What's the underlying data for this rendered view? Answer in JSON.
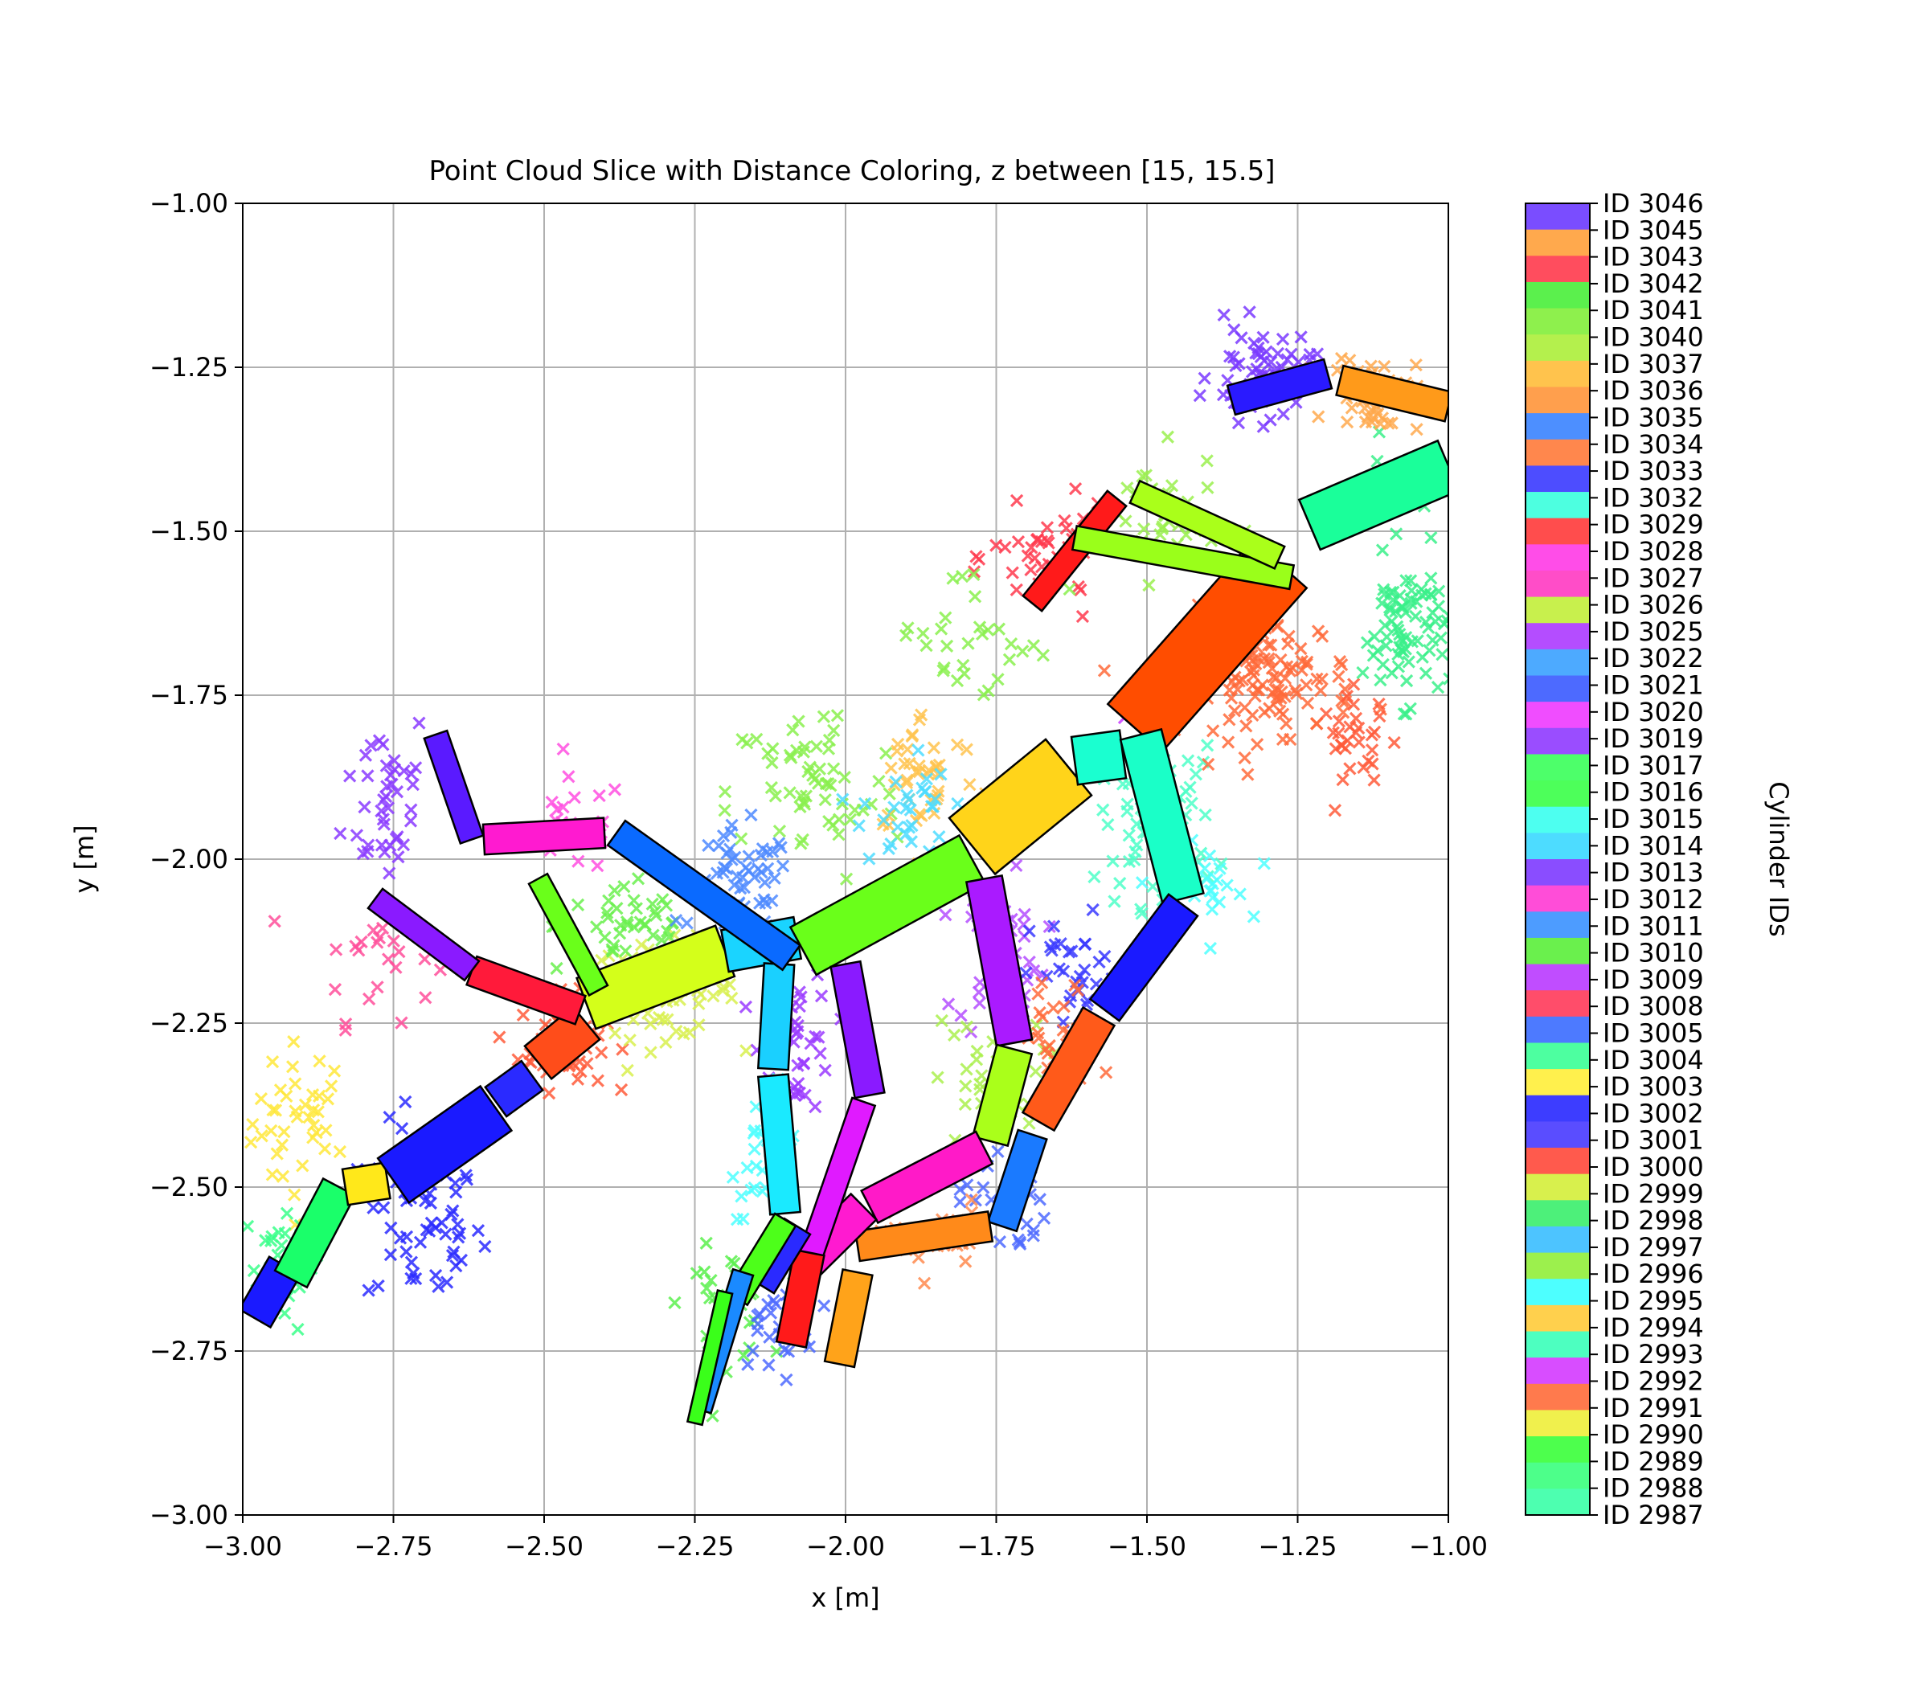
{
  "chart_data": {
    "type": "scatter",
    "title": "Point Cloud Slice with Distance Coloring, z between [15, 15.5]",
    "xlabel": "x [m]",
    "ylabel": "y [m]",
    "xlim": [
      -3.0,
      -1.0
    ],
    "ylim": [
      -3.0,
      -1.0
    ],
    "xticks": [
      "−3.00",
      "−2.75",
      "−2.50",
      "−2.25",
      "−2.00",
      "−1.75",
      "−1.50",
      "−1.25",
      "−1.00"
    ],
    "yticks": [
      "−3.00",
      "−2.75",
      "−2.50",
      "−2.25",
      "−2.00",
      "−1.75",
      "−1.50",
      "−1.25",
      "−1.00"
    ],
    "grid": true,
    "marker": "x",
    "colorbar": {
      "label": "Cylinder IDs",
      "entries": [
        {
          "label": "ID 3046",
          "color": "#7a4dff"
        },
        {
          "label": "ID 3045",
          "color": "#ffa94d"
        },
        {
          "label": "ID 3043",
          "color": "#ff4d5e"
        },
        {
          "label": "ID 3042",
          "color": "#5bf04d"
        },
        {
          "label": "ID 3041",
          "color": "#8ef04d"
        },
        {
          "label": "ID 3040",
          "color": "#b4f04d"
        },
        {
          "label": "ID 3037",
          "color": "#ffc34d"
        },
        {
          "label": "ID 3036",
          "color": "#ff9f4d"
        },
        {
          "label": "ID 3035",
          "color": "#4d8fff"
        },
        {
          "label": "ID 3034",
          "color": "#ff874d"
        },
        {
          "label": "ID 3033",
          "color": "#4d4dff"
        },
        {
          "label": "ID 3032",
          "color": "#4dffe0"
        },
        {
          "label": "ID 3029",
          "color": "#ff4d4d"
        },
        {
          "label": "ID 3028",
          "color": "#ff4de8"
        },
        {
          "label": "ID 3027",
          "color": "#ff4dc8"
        },
        {
          "label": "ID 3026",
          "color": "#c8f04d"
        },
        {
          "label": "ID 3025",
          "color": "#b44dff"
        },
        {
          "label": "ID 3022",
          "color": "#4daaff"
        },
        {
          "label": "ID 3021",
          "color": "#4d6aff"
        },
        {
          "label": "ID 3020",
          "color": "#f04dff"
        },
        {
          "label": "ID 3019",
          "color": "#9a4dff"
        },
        {
          "label": "ID 3017",
          "color": "#4dff6a"
        },
        {
          "label": "ID 3016",
          "color": "#4dff5a"
        },
        {
          "label": "ID 3015",
          "color": "#4dfff0"
        },
        {
          "label": "ID 3014",
          "color": "#4ddcff"
        },
        {
          "label": "ID 3013",
          "color": "#8a4dff"
        },
        {
          "label": "ID 3012",
          "color": "#ff4dd8"
        },
        {
          "label": "ID 3011",
          "color": "#4d9cff"
        },
        {
          "label": "ID 3010",
          "color": "#6af04d"
        },
        {
          "label": "ID 3009",
          "color": "#c04dff"
        },
        {
          "label": "ID 3008",
          "color": "#ff4d6a"
        },
        {
          "label": "ID 3005",
          "color": "#4d7aff"
        },
        {
          "label": "ID 3004",
          "color": "#4dffa0"
        },
        {
          "label": "ID 3003",
          "color": "#fff04d"
        },
        {
          "label": "ID 3002",
          "color": "#3d3dff"
        },
        {
          "label": "ID 3001",
          "color": "#5a4dff"
        },
        {
          "label": "ID 3000",
          "color": "#ff5a4d"
        },
        {
          "label": "ID 2999",
          "color": "#d8f04d"
        },
        {
          "label": "ID 2998",
          "color": "#4df07a"
        },
        {
          "label": "ID 2997",
          "color": "#4dc4ff"
        },
        {
          "label": "ID 2996",
          "color": "#9cf04d"
        },
        {
          "label": "ID 2995",
          "color": "#4dffff"
        },
        {
          "label": "ID 2994",
          "color": "#ffd04d"
        },
        {
          "label": "ID 2993",
          "color": "#4dffc0"
        },
        {
          "label": "ID 2992",
          "color": "#d84dff"
        },
        {
          "label": "ID 2991",
          "color": "#ff7a4d"
        },
        {
          "label": "ID 2990",
          "color": "#f0f04d"
        },
        {
          "label": "ID 2989",
          "color": "#4dff4d"
        },
        {
          "label": "ID 2988",
          "color": "#4dff8a"
        },
        {
          "label": "ID 2987",
          "color": "#4dffb0"
        }
      ]
    },
    "cylinders": [
      {
        "x1": -2.98,
        "y1": -2.7,
        "x2": -2.93,
        "y2": -2.62,
        "w": 0.06,
        "color": "#1a1aff"
      },
      {
        "x1": -2.92,
        "y1": -2.64,
        "x2": -2.84,
        "y2": -2.5,
        "w": 0.06,
        "color": "#1aff6a"
      },
      {
        "x1": -2.83,
        "y1": -2.5,
        "x2": -2.76,
        "y2": -2.49,
        "w": 0.06,
        "color": "#ffe81a"
      },
      {
        "x1": -2.75,
        "y1": -2.49,
        "x2": -2.58,
        "y2": -2.38,
        "w": 0.09,
        "color": "#1a1aff"
      },
      {
        "x1": -2.58,
        "y1": -2.37,
        "x2": -2.52,
        "y2": -2.33,
        "w": 0.06,
        "color": "#2a2aff"
      },
      {
        "x1": -2.51,
        "y1": -2.31,
        "x2": -2.43,
        "y2": -2.25,
        "w": 0.07,
        "color": "#ff4d1a"
      },
      {
        "x1": -2.43,
        "y1": -2.22,
        "x2": -2.2,
        "y2": -2.14,
        "w": 0.09,
        "color": "#d4ff1a"
      },
      {
        "x1": -2.2,
        "y1": -2.14,
        "x2": -2.08,
        "y2": -2.12,
        "w": 0.07,
        "color": "#1ad4ff"
      },
      {
        "x1": -2.07,
        "y1": -2.14,
        "x2": -1.79,
        "y2": -2.0,
        "w": 0.09,
        "color": "#6aff1a"
      },
      {
        "x1": -1.79,
        "y1": -1.98,
        "x2": -1.63,
        "y2": -1.86,
        "w": 0.12,
        "color": "#ffd41a"
      },
      {
        "x1": -1.62,
        "y1": -1.85,
        "x2": -1.54,
        "y2": -1.84,
        "w": 0.08,
        "color": "#1affd0"
      },
      {
        "x1": -1.52,
        "y1": -1.8,
        "x2": -1.28,
        "y2": -1.55,
        "w": 0.12,
        "color": "#ff4d00"
      },
      {
        "x1": -1.69,
        "y1": -1.61,
        "x2": -1.55,
        "y2": -1.45,
        "w": 0.04,
        "color": "#ff1a1a"
      },
      {
        "x1": -1.62,
        "y1": -1.51,
        "x2": -1.26,
        "y2": -1.57,
        "w": 0.04,
        "color": "#9aff1a"
      },
      {
        "x1": -1.52,
        "y1": -1.44,
        "x2": -1.28,
        "y2": -1.54,
        "w": 0.04,
        "color": "#aaff1a"
      },
      {
        "x1": -1.23,
        "y1": -1.49,
        "x2": -1.0,
        "y2": -1.4,
        "w": 0.09,
        "color": "#1aff9a"
      },
      {
        "x1": -1.36,
        "y1": -1.3,
        "x2": -1.2,
        "y2": -1.26,
        "w": 0.05,
        "color": "#2a1aff"
      },
      {
        "x1": -1.18,
        "y1": -1.27,
        "x2": -1.0,
        "y2": -1.31,
        "w": 0.05,
        "color": "#ff9a1a"
      },
      {
        "x1": -1.51,
        "y1": -1.81,
        "x2": -1.44,
        "y2": -2.06,
        "w": 0.07,
        "color": "#1affc8"
      },
      {
        "x1": -1.44,
        "y1": -2.07,
        "x2": -1.57,
        "y2": -2.23,
        "w": 0.06,
        "color": "#1a1aff"
      },
      {
        "x1": -1.58,
        "y1": -2.24,
        "x2": -1.68,
        "y2": -2.4,
        "w": 0.06,
        "color": "#ff5a1a"
      },
      {
        "x1": -1.69,
        "y1": -2.42,
        "x2": -1.74,
        "y2": -2.56,
        "w": 0.05,
        "color": "#1a7aff"
      },
      {
        "x1": -1.77,
        "y1": -2.03,
        "x2": -1.72,
        "y2": -2.28,
        "w": 0.06,
        "color": "#aa1aff"
      },
      {
        "x1": -1.72,
        "y1": -2.29,
        "x2": -1.76,
        "y2": -2.43,
        "w": 0.06,
        "color": "#aaff1a"
      },
      {
        "x1": -1.77,
        "y1": -2.44,
        "x2": -1.96,
        "y2": -2.53,
        "w": 0.06,
        "color": "#ff1ac8"
      },
      {
        "x1": -1.76,
        "y1": -2.56,
        "x2": -1.98,
        "y2": -2.59,
        "w": 0.05,
        "color": "#ff8a1a"
      },
      {
        "x1": -1.98,
        "y1": -2.63,
        "x2": -2.01,
        "y2": -2.77,
        "w": 0.05,
        "color": "#ffa31a"
      },
      {
        "x1": -1.97,
        "y1": -2.53,
        "x2": -2.08,
        "y2": -2.63,
        "w": 0.06,
        "color": "#ff1ad0"
      },
      {
        "x1": -2.0,
        "y1": -2.16,
        "x2": -1.96,
        "y2": -2.36,
        "w": 0.05,
        "color": "#8a1aff"
      },
      {
        "x1": -1.97,
        "y1": -2.37,
        "x2": -2.06,
        "y2": -2.61,
        "w": 0.04,
        "color": "#e01aff"
      },
      {
        "x1": -2.06,
        "y1": -2.6,
        "x2": -2.09,
        "y2": -2.74,
        "w": 0.05,
        "color": "#ff1a1a"
      },
      {
        "x1": -2.08,
        "y1": -2.56,
        "x2": -2.14,
        "y2": -2.65,
        "w": 0.05,
        "color": "#2a2aff"
      },
      {
        "x1": -2.11,
        "y1": -2.16,
        "x2": -2.12,
        "y2": -2.32,
        "w": 0.05,
        "color": "#1ad0ff"
      },
      {
        "x1": -2.12,
        "y1": -2.33,
        "x2": -2.1,
        "y2": -2.54,
        "w": 0.05,
        "color": "#1aeaff"
      },
      {
        "x1": -2.1,
        "y1": -2.55,
        "x2": -2.18,
        "y2": -2.67,
        "w": 0.04,
        "color": "#4dff1a"
      },
      {
        "x1": -2.17,
        "y1": -2.63,
        "x2": -2.24,
        "y2": -2.84,
        "w": 0.035,
        "color": "#1a8aff"
      },
      {
        "x1": -2.2,
        "y1": -2.66,
        "x2": -2.25,
        "y2": -2.86,
        "w": 0.025,
        "color": "#3aff1a"
      },
      {
        "x1": -2.09,
        "y1": -2.15,
        "x2": -2.38,
        "y2": -1.96,
        "w": 0.05,
        "color": "#0a6aff"
      },
      {
        "x1": -2.4,
        "y1": -1.96,
        "x2": -2.6,
        "y2": -1.97,
        "w": 0.05,
        "color": "#ff1ad0"
      },
      {
        "x1": -2.62,
        "y1": -1.97,
        "x2": -2.68,
        "y2": -1.81,
        "w": 0.04,
        "color": "#5a1aff"
      },
      {
        "x1": -2.44,
        "y1": -2.23,
        "x2": -2.62,
        "y2": -2.17,
        "w": 0.05,
        "color": "#ff1a3a"
      },
      {
        "x1": -2.62,
        "y1": -2.17,
        "x2": -2.78,
        "y2": -2.06,
        "w": 0.04,
        "color": "#8a1aff"
      },
      {
        "x1": -2.41,
        "y1": -2.2,
        "x2": -2.51,
        "y2": -2.03,
        "w": 0.035,
        "color": "#6aff1a"
      }
    ],
    "clusters": [
      {
        "x": -2.9,
        "y": -2.4,
        "sx": 0.07,
        "sy": 0.1,
        "n": 40,
        "color": "#ffe83a"
      },
      {
        "x": -2.93,
        "y": -2.62,
        "sx": 0.05,
        "sy": 0.08,
        "n": 30,
        "color": "#3aff8a"
      },
      {
        "x": -2.7,
        "y": -2.55,
        "sx": 0.08,
        "sy": 0.12,
        "n": 60,
        "color": "#2a2aff"
      },
      {
        "x": -2.76,
        "y": -1.9,
        "sx": 0.06,
        "sy": 0.12,
        "n": 40,
        "color": "#8a3aff"
      },
      {
        "x": -2.78,
        "y": -2.15,
        "sx": 0.08,
        "sy": 0.08,
        "n": 22,
        "color": "#ff4d9a"
      },
      {
        "x": -2.47,
        "y": -2.28,
        "sx": 0.06,
        "sy": 0.06,
        "n": 60,
        "color": "#ff5a3a"
      },
      {
        "x": -2.3,
        "y": -2.2,
        "sx": 0.1,
        "sy": 0.06,
        "n": 70,
        "color": "#d8f04d"
      },
      {
        "x": -2.36,
        "y": -2.1,
        "sx": 0.1,
        "sy": 0.06,
        "n": 40,
        "color": "#6af04d"
      },
      {
        "x": -2.45,
        "y": -1.95,
        "sx": 0.07,
        "sy": 0.06,
        "n": 25,
        "color": "#ff4de0"
      },
      {
        "x": -2.17,
        "y": -2.05,
        "sx": 0.07,
        "sy": 0.08,
        "n": 60,
        "color": "#4d8aff"
      },
      {
        "x": -2.08,
        "y": -2.28,
        "sx": 0.05,
        "sy": 0.09,
        "n": 40,
        "color": "#9a3aff"
      },
      {
        "x": -2.13,
        "y": -2.45,
        "sx": 0.05,
        "sy": 0.08,
        "n": 30,
        "color": "#4dffff"
      },
      {
        "x": -2.2,
        "y": -2.68,
        "sx": 0.06,
        "sy": 0.07,
        "n": 30,
        "color": "#5af04d"
      },
      {
        "x": -2.12,
        "y": -2.7,
        "sx": 0.06,
        "sy": 0.07,
        "n": 30,
        "color": "#4d6aff"
      },
      {
        "x": -2.05,
        "y": -1.9,
        "sx": 0.12,
        "sy": 0.12,
        "n": 60,
        "color": "#8af04d"
      },
      {
        "x": -1.87,
        "y": -1.87,
        "sx": 0.08,
        "sy": 0.08,
        "n": 40,
        "color": "#ffc34d"
      },
      {
        "x": -1.9,
        "y": -1.92,
        "sx": 0.06,
        "sy": 0.08,
        "n": 30,
        "color": "#4ddcff"
      },
      {
        "x": -1.74,
        "y": -2.15,
        "sx": 0.06,
        "sy": 0.1,
        "n": 50,
        "color": "#b44dff"
      },
      {
        "x": -1.76,
        "y": -2.35,
        "sx": 0.08,
        "sy": 0.09,
        "n": 40,
        "color": "#aaf04d"
      },
      {
        "x": -1.74,
        "y": -2.52,
        "sx": 0.06,
        "sy": 0.07,
        "n": 28,
        "color": "#4d6aff"
      },
      {
        "x": -1.85,
        "y": -2.58,
        "sx": 0.07,
        "sy": 0.05,
        "n": 20,
        "color": "#ff8a4d"
      },
      {
        "x": -1.62,
        "y": -2.18,
        "sx": 0.06,
        "sy": 0.08,
        "n": 30,
        "color": "#3a3aff"
      },
      {
        "x": -1.65,
        "y": -2.28,
        "sx": 0.06,
        "sy": 0.08,
        "n": 25,
        "color": "#ff6a3a"
      },
      {
        "x": -1.48,
        "y": -1.95,
        "sx": 0.08,
        "sy": 0.1,
        "n": 70,
        "color": "#4dffc8"
      },
      {
        "x": -1.4,
        "y": -2.05,
        "sx": 0.06,
        "sy": 0.06,
        "n": 20,
        "color": "#4dffff"
      },
      {
        "x": -1.3,
        "y": -1.72,
        "sx": 0.12,
        "sy": 0.08,
        "n": 120,
        "color": "#ff6a3a"
      },
      {
        "x": -1.15,
        "y": -1.82,
        "sx": 0.05,
        "sy": 0.06,
        "n": 30,
        "color": "#ff5a3a"
      },
      {
        "x": -1.48,
        "y": -1.78,
        "sx": 0.04,
        "sy": 0.03,
        "n": 20,
        "color": "#c83aff"
      },
      {
        "x": -1.07,
        "y": -1.65,
        "sx": 0.06,
        "sy": 0.09,
        "n": 80,
        "color": "#3af08a"
      },
      {
        "x": -1.1,
        "y": -1.43,
        "sx": 0.06,
        "sy": 0.05,
        "n": 20,
        "color": "#3af08a"
      },
      {
        "x": -1.66,
        "y": -1.54,
        "sx": 0.08,
        "sy": 0.06,
        "n": 40,
        "color": "#ff3a4d"
      },
      {
        "x": -1.48,
        "y": -1.48,
        "sx": 0.08,
        "sy": 0.08,
        "n": 35,
        "color": "#9af04d"
      },
      {
        "x": -1.31,
        "y": -1.26,
        "sx": 0.07,
        "sy": 0.06,
        "n": 60,
        "color": "#7a3aff"
      },
      {
        "x": -1.12,
        "y": -1.29,
        "sx": 0.06,
        "sy": 0.05,
        "n": 45,
        "color": "#ffa94d"
      },
      {
        "x": -1.78,
        "y": -1.66,
        "sx": 0.12,
        "sy": 0.1,
        "n": 30,
        "color": "#8af04d"
      }
    ]
  }
}
